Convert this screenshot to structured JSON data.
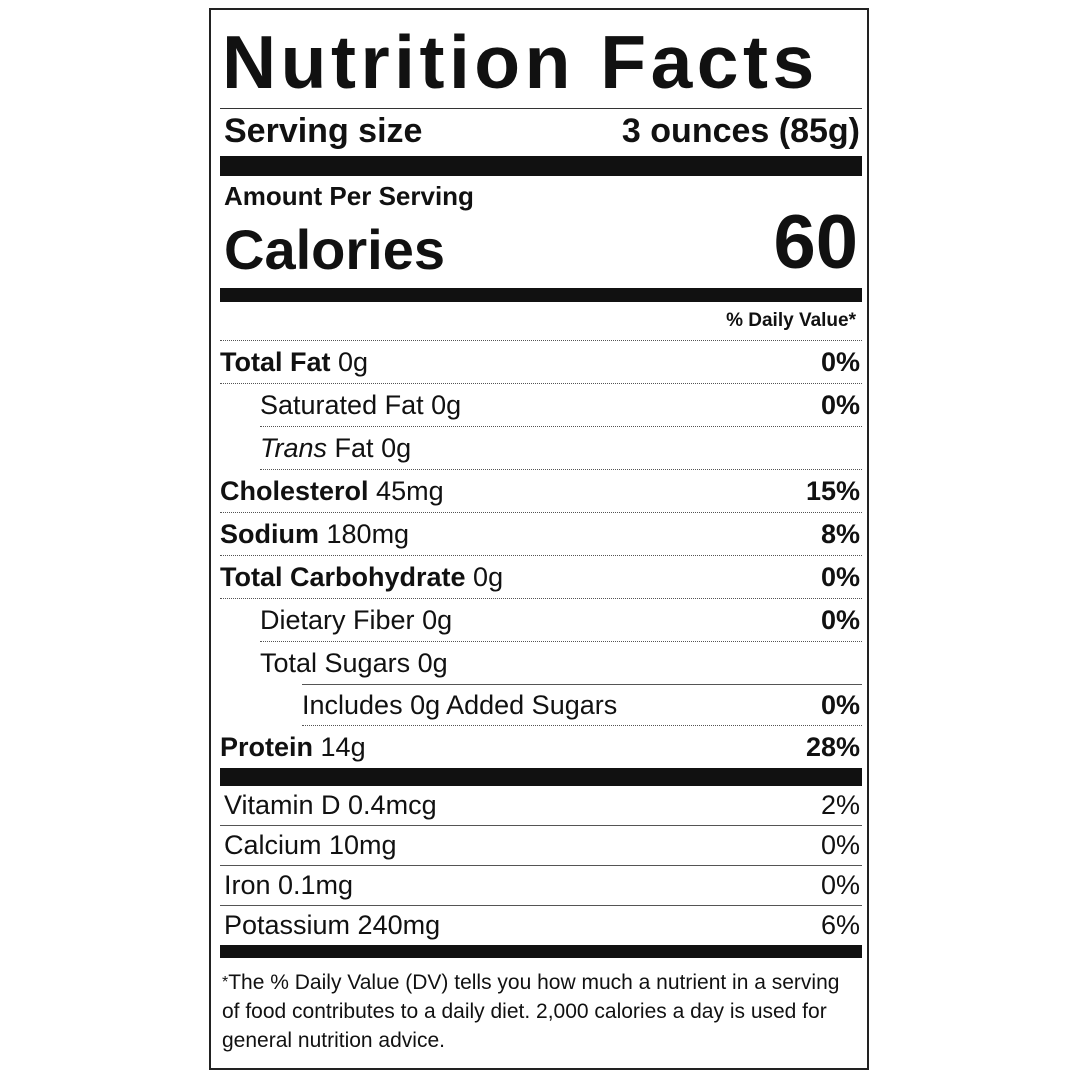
{
  "title": "Nutrition Facts",
  "serving": {
    "label": "Serving size",
    "value": "3 ounces (85g)"
  },
  "amount_per_serving": "Amount Per Serving",
  "calories": {
    "label": "Calories",
    "value": "60"
  },
  "dv_header": "% Daily Value*",
  "nutrients": [
    {
      "name": "Total Fat",
      "amount": "0g",
      "dv": "0%"
    },
    {
      "name": "Saturated Fat",
      "amount": "0g",
      "dv": "0%"
    },
    {
      "name": "Trans",
      "name_suffix": "Fat",
      "amount": "0g",
      "dv": ""
    },
    {
      "name": "Cholesterol",
      "amount": "45mg",
      "dv": "15%"
    },
    {
      "name": "Sodium",
      "amount": "180mg",
      "dv": "8%"
    },
    {
      "name": "Total Carbohydrate",
      "amount": "0g",
      "dv": "0%"
    },
    {
      "name": "Dietary Fiber",
      "amount": "0g",
      "dv": "0%"
    },
    {
      "name": "Total Sugars",
      "amount": "0g",
      "dv": ""
    },
    {
      "name": "Includes 0g Added Sugars",
      "amount": "",
      "dv": "0%"
    },
    {
      "name": "Protein",
      "amount": "14g",
      "dv": "28%"
    }
  ],
  "vitamins": [
    {
      "name": "Vitamin D 0.4mcg",
      "dv": "2%"
    },
    {
      "name": "Calcium 10mg",
      "dv": "0%"
    },
    {
      "name": "Iron 0.1mg",
      "dv": "0%"
    },
    {
      "name": "Potassium 240mg",
      "dv": "6%"
    }
  ],
  "footnote": {
    "star": "*",
    "text": "The % Daily Value (DV) tells you how much a nutrient in a serving of food contributes to a daily diet. 2,000 calories a day is used for general nutrition advice."
  }
}
